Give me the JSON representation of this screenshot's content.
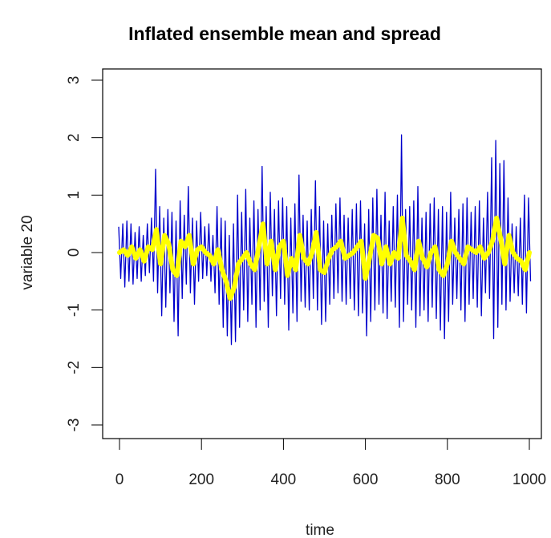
{
  "chart_data": {
    "type": "line",
    "title": "Inflated ensemble mean and spread",
    "xlabel": "time",
    "ylabel": "variable 20",
    "xlim": [
      0,
      1000
    ],
    "ylim": [
      -3,
      3
    ],
    "xticks": [
      0,
      200,
      400,
      600,
      800,
      1000
    ],
    "xtick_labels": [
      "0",
      "200",
      "400",
      "600",
      "800",
      "1000"
    ],
    "yticks": [
      -3,
      -2,
      -1,
      0,
      1,
      2,
      3
    ],
    "ytick_labels": [
      "-3",
      "-2",
      "-1",
      "0",
      "1",
      "2",
      "3"
    ],
    "grid": false,
    "legend": "none",
    "series": [
      {
        "role": "spread-bounds",
        "color": "#0000cc",
        "x": [
          0,
          10,
          20,
          30,
          40,
          50,
          60,
          70,
          80,
          90,
          100,
          110,
          120,
          130,
          140,
          150,
          160,
          170,
          180,
          190,
          200,
          210,
          220,
          230,
          240,
          250,
          260,
          270,
          280,
          290,
          300,
          310,
          320,
          330,
          340,
          350,
          360,
          370,
          380,
          390,
          400,
          410,
          420,
          430,
          440,
          450,
          460,
          470,
          480,
          490,
          500,
          510,
          520,
          530,
          540,
          550,
          560,
          570,
          580,
          590,
          600,
          610,
          620,
          630,
          640,
          650,
          660,
          670,
          680,
          690,
          700,
          710,
          720,
          730,
          740,
          750,
          760,
          770,
          780,
          790,
          800,
          810,
          820,
          830,
          840,
          850,
          860,
          870,
          880,
          890,
          900,
          910,
          920,
          930,
          940,
          950,
          960,
          970,
          980,
          990,
          1000
        ],
        "upper": [
          0.45,
          0.5,
          0.55,
          0.5,
          0.35,
          0.45,
          0.3,
          0.5,
          0.6,
          1.45,
          0.8,
          0.6,
          0.75,
          0.7,
          0.55,
          0.9,
          0.65,
          1.15,
          0.6,
          0.55,
          0.7,
          0.45,
          0.5,
          0.3,
          0.8,
          0.6,
          0.55,
          0.3,
          0.5,
          1.0,
          0.7,
          1.1,
          0.6,
          0.9,
          0.75,
          1.5,
          0.8,
          1.05,
          0.75,
          0.9,
          0.95,
          0.8,
          0.6,
          0.85,
          1.35,
          0.65,
          0.55,
          0.75,
          1.25,
          0.8,
          0.55,
          0.5,
          0.65,
          0.85,
          0.95,
          0.65,
          0.6,
          0.75,
          0.85,
          0.9,
          0.5,
          0.75,
          0.95,
          1.1,
          0.65,
          1.05,
          0.55,
          0.8,
          1.0,
          2.05,
          0.75,
          0.8,
          0.9,
          1.15,
          0.6,
          0.7,
          0.85,
          0.95,
          0.75,
          0.8,
          0.7,
          1.05,
          0.6,
          0.75,
          0.85,
          0.95,
          0.7,
          0.8,
          0.9,
          0.6,
          1.05,
          1.65,
          1.95,
          1.55,
          1.6,
          0.95,
          0.5,
          0.45,
          0.6,
          1.0,
          0.95
        ],
        "lower": [
          -0.45,
          -0.6,
          -0.5,
          -0.55,
          -0.45,
          -0.5,
          -0.4,
          -0.35,
          -0.5,
          -0.7,
          -1.1,
          -0.95,
          -0.7,
          -1.2,
          -1.45,
          -0.8,
          -0.55,
          -0.7,
          -0.9,
          -0.5,
          -0.45,
          -0.4,
          -0.5,
          -0.7,
          -0.9,
          -1.3,
          -1.45,
          -1.6,
          -1.55,
          -1.3,
          -1.0,
          -1.2,
          -0.9,
          -1.3,
          -1.0,
          -0.85,
          -1.3,
          -0.75,
          -1.1,
          -0.8,
          -0.9,
          -1.35,
          -1.05,
          -1.2,
          -0.85,
          -0.95,
          -1.0,
          -0.8,
          -1.0,
          -1.25,
          -1.2,
          -0.9,
          -0.8,
          -0.7,
          -0.85,
          -0.9,
          -0.8,
          -1.0,
          -1.1,
          -1.05,
          -1.45,
          -1.2,
          -1.0,
          -0.9,
          -1.05,
          -1.15,
          -0.85,
          -0.95,
          -1.3,
          -1.2,
          -0.9,
          -1.0,
          -1.3,
          -1.1,
          -1.0,
          -1.2,
          -0.95,
          -1.15,
          -1.35,
          -1.5,
          -1.2,
          -0.9,
          -0.8,
          -1.0,
          -1.2,
          -0.9,
          -0.8,
          -0.95,
          -1.1,
          -0.7,
          -0.8,
          -1.5,
          -1.3,
          -0.9,
          -1.0,
          -0.85,
          -0.7,
          -0.75,
          -0.9,
          -1.05,
          -0.5
        ]
      },
      {
        "role": "ensemble-mean",
        "color": "#ffff00",
        "x": [
          0,
          10,
          20,
          30,
          40,
          50,
          60,
          70,
          80,
          90,
          100,
          110,
          120,
          130,
          140,
          150,
          160,
          170,
          180,
          190,
          200,
          210,
          220,
          230,
          240,
          250,
          260,
          270,
          280,
          290,
          300,
          310,
          320,
          330,
          340,
          350,
          360,
          370,
          380,
          390,
          400,
          410,
          420,
          430,
          440,
          450,
          460,
          470,
          480,
          490,
          500,
          510,
          520,
          530,
          540,
          550,
          560,
          570,
          580,
          590,
          600,
          610,
          620,
          630,
          640,
          650,
          660,
          670,
          680,
          690,
          700,
          710,
          720,
          730,
          740,
          750,
          760,
          770,
          780,
          790,
          800,
          810,
          820,
          830,
          840,
          850,
          860,
          870,
          880,
          890,
          900,
          910,
          920,
          930,
          940,
          950,
          960,
          970,
          980,
          990,
          1000
        ],
        "mean": [
          0.0,
          0.05,
          -0.05,
          0.1,
          -0.1,
          0.05,
          -0.15,
          0.1,
          0.05,
          0.4,
          -0.2,
          0.3,
          0.15,
          -0.3,
          -0.4,
          0.2,
          0.1,
          0.3,
          -0.2,
          0.05,
          0.1,
          0.0,
          -0.05,
          -0.2,
          0.05,
          -0.3,
          -0.5,
          -0.8,
          -0.6,
          -0.2,
          -0.1,
          0.0,
          -0.2,
          -0.3,
          0.1,
          0.5,
          -0.2,
          0.2,
          -0.3,
          0.1,
          0.2,
          -0.4,
          -0.1,
          -0.3,
          0.3,
          -0.1,
          -0.2,
          0.0,
          0.35,
          -0.3,
          -0.35,
          -0.1,
          0.05,
          0.1,
          0.2,
          -0.1,
          -0.05,
          0.0,
          0.1,
          0.2,
          -0.45,
          -0.1,
          0.3,
          0.25,
          -0.2,
          0.1,
          -0.2,
          0.0,
          -0.1,
          0.6,
          -0.05,
          -0.15,
          -0.3,
          0.2,
          -0.1,
          -0.25,
          0.0,
          0.1,
          -0.3,
          -0.4,
          -0.2,
          0.2,
          0.0,
          -0.1,
          -0.2,
          0.1,
          0.05,
          0.0,
          0.1,
          -0.1,
          0.0,
          0.2,
          0.6,
          0.25,
          -0.2,
          0.3,
          0.0,
          -0.1,
          -0.15,
          -0.3,
          0.0
        ]
      }
    ]
  }
}
